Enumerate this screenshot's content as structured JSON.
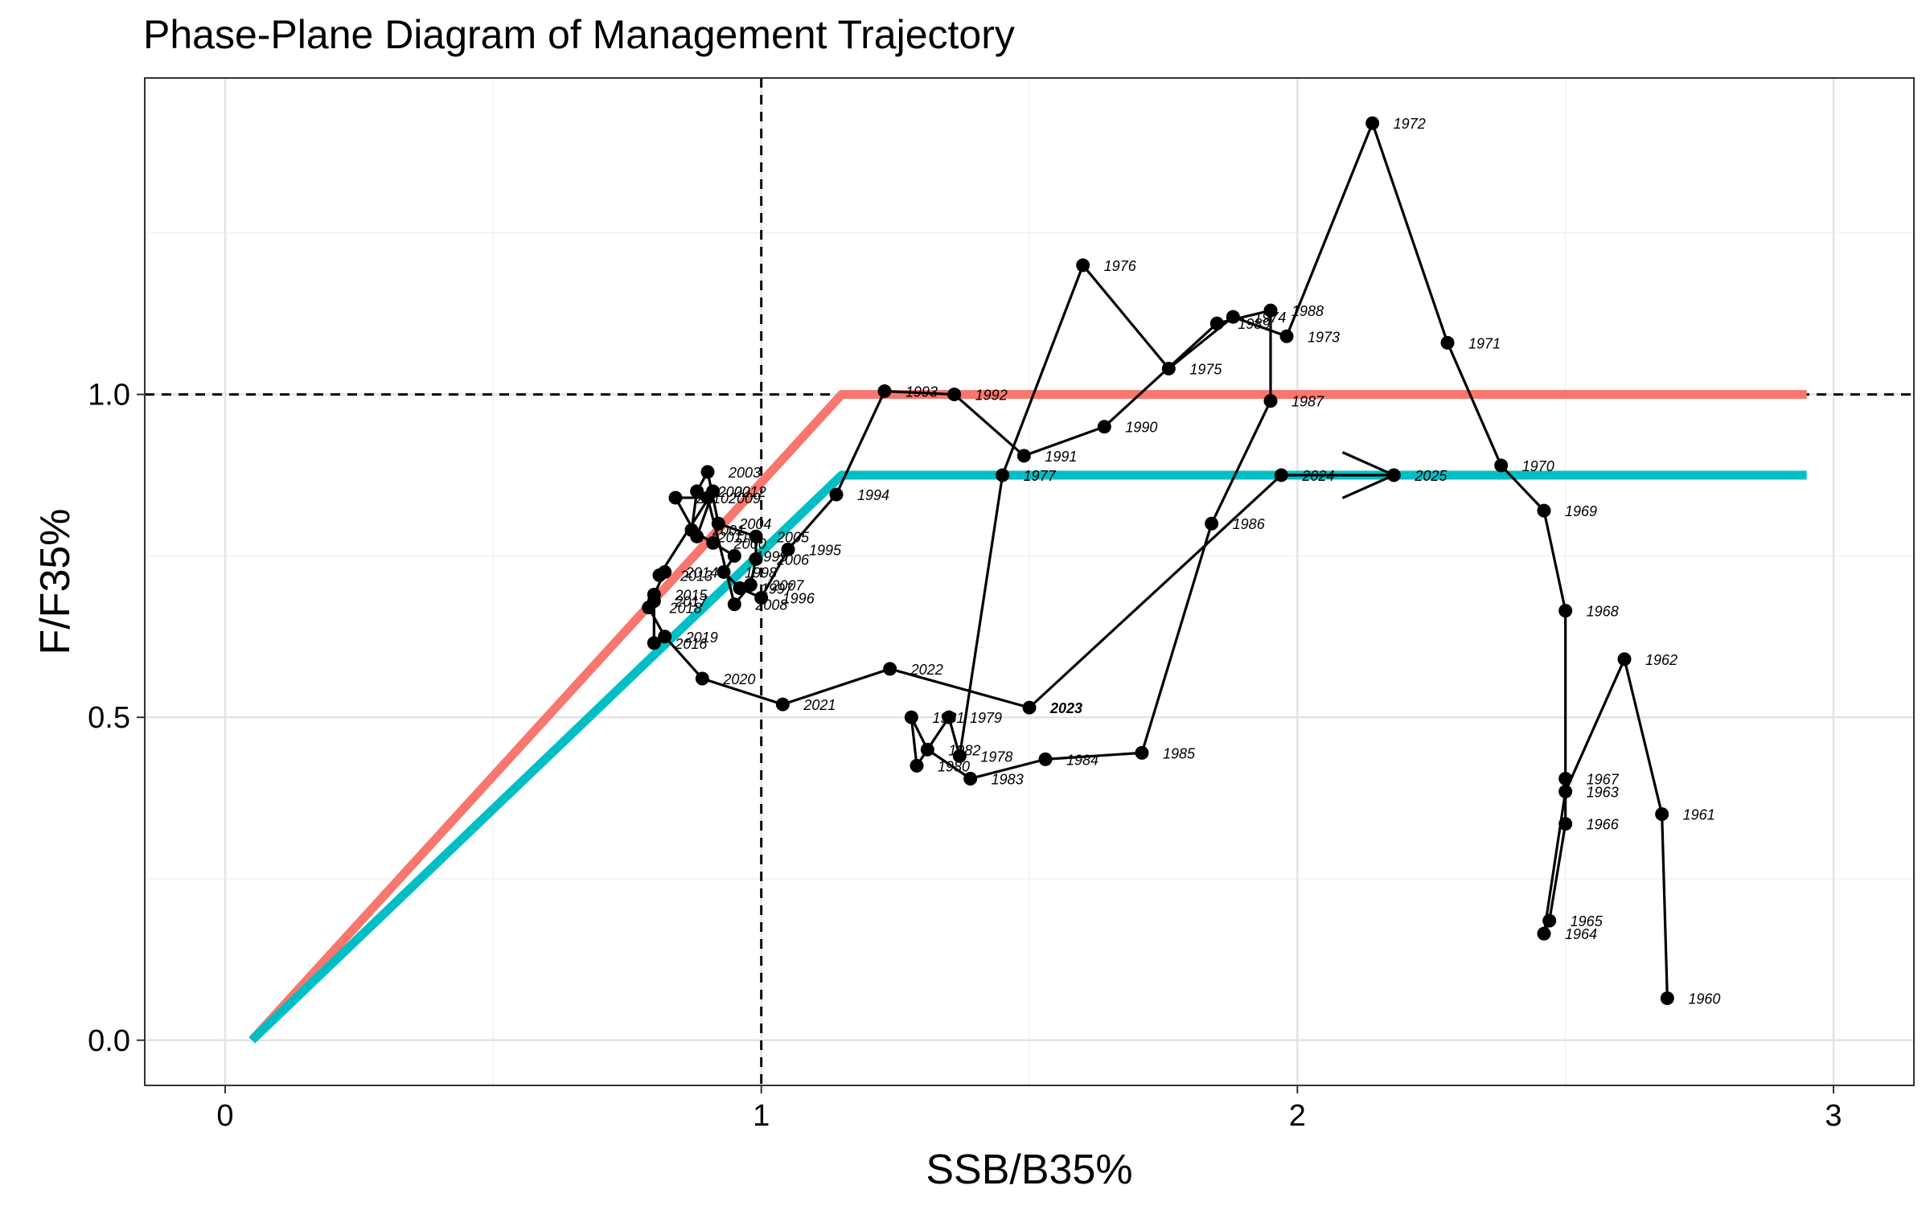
{
  "chart_data": {
    "type": "line",
    "title": "Phase-Plane Diagram of Management Trajectory",
    "xlabel": "SSB/B35%",
    "ylabel": "F/F35%",
    "xlim": [
      -0.15,
      3.15
    ],
    "ylim": [
      -0.07,
      1.49
    ],
    "x_ticks": [
      0,
      1,
      2,
      3
    ],
    "x_tick_labels": [
      "0",
      "1",
      "2",
      "3"
    ],
    "y_ticks": [
      0.0,
      0.5,
      1.0
    ],
    "y_tick_labels": [
      "0.0",
      "0.5",
      "1.0"
    ],
    "x_minor": [
      0.5,
      1.5,
      2.5
    ],
    "y_minor": [
      0.25,
      0.75,
      1.25
    ],
    "grid": true,
    "reference_lines": {
      "x": 1.0,
      "y": 1.0
    },
    "control_rules": [
      {
        "color": "#F8766D",
        "points": [
          [
            0.05,
            0.0
          ],
          [
            1.15,
            1.0
          ],
          [
            2.95,
            1.0
          ]
        ]
      },
      {
        "color": "#00BFC4",
        "points": [
          [
            0.05,
            0.0
          ],
          [
            1.15,
            0.875
          ],
          [
            2.95,
            0.875
          ]
        ]
      }
    ],
    "trajectory": [
      {
        "year": "1960",
        "x": 2.69,
        "y": 0.065
      },
      {
        "year": "1961",
        "x": 2.68,
        "y": 0.35
      },
      {
        "year": "1962",
        "x": 2.61,
        "y": 0.59
      },
      {
        "year": "1963",
        "x": 2.5,
        "y": 0.385
      },
      {
        "year": "1964",
        "x": 2.46,
        "y": 0.165
      },
      {
        "year": "1965",
        "x": 2.47,
        "y": 0.185
      },
      {
        "year": "1966",
        "x": 2.5,
        "y": 0.335
      },
      {
        "year": "1967",
        "x": 2.5,
        "y": 0.405
      },
      {
        "year": "1968",
        "x": 2.5,
        "y": 0.665
      },
      {
        "year": "1969",
        "x": 2.46,
        "y": 0.82
      },
      {
        "year": "1970",
        "x": 2.38,
        "y": 0.89
      },
      {
        "year": "1971",
        "x": 2.28,
        "y": 1.08
      },
      {
        "year": "1972",
        "x": 2.14,
        "y": 1.42
      },
      {
        "year": "1973",
        "x": 1.98,
        "y": 1.09
      },
      {
        "year": "1974",
        "x": 1.88,
        "y": 1.12
      },
      {
        "year": "1975",
        "x": 1.76,
        "y": 1.04
      },
      {
        "year": "1976",
        "x": 1.6,
        "y": 1.2
      },
      {
        "year": "1977",
        "x": 1.45,
        "y": 0.875
      },
      {
        "year": "1978",
        "x": 1.37,
        "y": 0.44
      },
      {
        "year": "1979",
        "x": 1.35,
        "y": 0.5
      },
      {
        "year": "1980",
        "x": 1.29,
        "y": 0.425
      },
      {
        "year": "1981",
        "x": 1.28,
        "y": 0.5
      },
      {
        "year": "1982",
        "x": 1.31,
        "y": 0.45
      },
      {
        "year": "1983",
        "x": 1.39,
        "y": 0.405
      },
      {
        "year": "1984",
        "x": 1.53,
        "y": 0.435
      },
      {
        "year": "1985",
        "x": 1.71,
        "y": 0.445
      },
      {
        "year": "1986",
        "x": 1.84,
        "y": 0.8
      },
      {
        "year": "1987",
        "x": 1.95,
        "y": 0.99
      },
      {
        "year": "1988",
        "x": 1.95,
        "y": 1.13
      },
      {
        "year": "1989",
        "x": 1.85,
        "y": 1.11
      },
      {
        "year": "1990",
        "x": 1.64,
        "y": 0.95
      },
      {
        "year": "1991",
        "x": 1.49,
        "y": 0.905
      },
      {
        "year": "1992",
        "x": 1.36,
        "y": 1.0
      },
      {
        "year": "1993",
        "x": 1.23,
        "y": 1.005
      },
      {
        "year": "1994",
        "x": 1.14,
        "y": 0.845
      },
      {
        "year": "1995",
        "x": 1.05,
        "y": 0.76
      },
      {
        "year": "1996",
        "x": 1.0,
        "y": 0.685
      },
      {
        "year": "1997",
        "x": 0.96,
        "y": 0.7
      },
      {
        "year": "1998",
        "x": 0.93,
        "y": 0.725
      },
      {
        "year": "1999",
        "x": 0.95,
        "y": 0.75
      },
      {
        "year": "2000",
        "x": 0.91,
        "y": 0.77
      },
      {
        "year": "2001",
        "x": 0.87,
        "y": 0.79
      },
      {
        "year": "2002",
        "x": 0.88,
        "y": 0.85
      },
      {
        "year": "2003",
        "x": 0.9,
        "y": 0.88
      },
      {
        "year": "2004",
        "x": 0.92,
        "y": 0.8
      },
      {
        "year": "2005",
        "x": 0.99,
        "y": 0.78
      },
      {
        "year": "2006",
        "x": 0.99,
        "y": 0.745
      },
      {
        "year": "2007",
        "x": 0.98,
        "y": 0.705
      },
      {
        "year": "2008",
        "x": 0.95,
        "y": 0.675
      },
      {
        "year": "2009",
        "x": 0.9,
        "y": 0.84
      },
      {
        "year": "2010",
        "x": 0.84,
        "y": 0.84
      },
      {
        "year": "2011",
        "x": 0.88,
        "y": 0.78
      },
      {
        "year": "2012",
        "x": 0.91,
        "y": 0.85
      },
      {
        "year": "2013",
        "x": 0.81,
        "y": 0.72
      },
      {
        "year": "2014",
        "x": 0.82,
        "y": 0.725
      },
      {
        "year": "2015",
        "x": 0.8,
        "y": 0.69
      },
      {
        "year": "2016",
        "x": 0.8,
        "y": 0.615
      },
      {
        "year": "2017",
        "x": 0.8,
        "y": 0.68
      },
      {
        "year": "2018",
        "x": 0.79,
        "y": 0.67
      },
      {
        "year": "2019",
        "x": 0.82,
        "y": 0.625
      },
      {
        "year": "2020",
        "x": 0.89,
        "y": 0.56
      },
      {
        "year": "2021",
        "x": 1.04,
        "y": 0.52
      },
      {
        "year": "2022",
        "x": 1.24,
        "y": 0.575
      },
      {
        "year": "2023",
        "x": 1.5,
        "y": 0.515
      },
      {
        "year": "2024",
        "x": 1.97,
        "y": 0.875
      },
      {
        "year": "2025",
        "x": 2.18,
        "y": 0.875
      }
    ],
    "bold_labels": [
      "2023"
    ],
    "projection_arrow": {
      "from": "2024",
      "to": "2025"
    },
    "line_color": "#000000"
  }
}
